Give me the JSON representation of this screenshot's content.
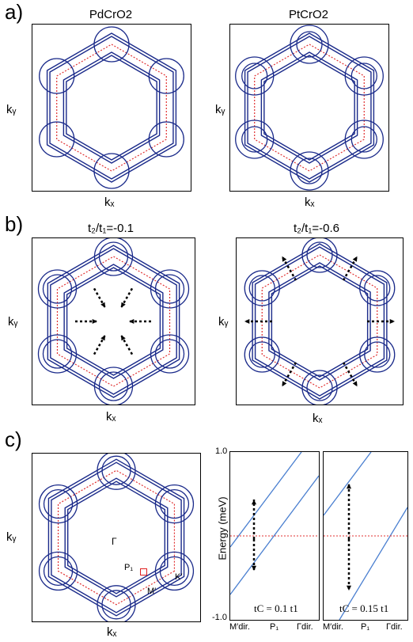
{
  "panels": {
    "a": {
      "label": "a)",
      "left_title": "PdCrO2",
      "right_title": "PtCrO2"
    },
    "b": {
      "label": "b)",
      "left_title": "t₂/t₁=-0.1",
      "right_title": "t₂/t₁=-0.6"
    },
    "c": {
      "label": "c)"
    }
  },
  "axes": {
    "ky": "kᵧ",
    "kx": "kₓ"
  },
  "bz_labels": {
    "gamma": "Γ",
    "p1": "P₁",
    "k_prime": "K′",
    "m_prime": "M′"
  },
  "energy_plot": {
    "ylabel": "Energy (meV)",
    "y_top": "1.0",
    "y_bottom": "-1.0",
    "left_tc": "tC = 0.1 t1",
    "right_tc": "tC = 0.15 t1",
    "x_left": "M′dir.",
    "x_mid": "P₁",
    "x_right": "Γdir."
  },
  "colors": {
    "band": "#1a2a8a",
    "dashed": "#e03030",
    "line": "#4a7fd0"
  }
}
